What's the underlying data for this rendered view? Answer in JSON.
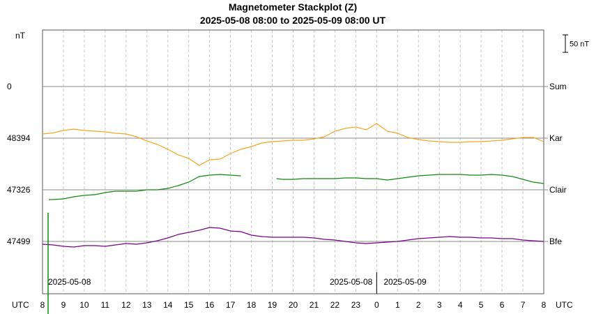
{
  "chart_data": {
    "type": "line",
    "title": "Magnetometer Stackplot (Z)",
    "subtitle": "2025-05-08 08:00 to 2025-05-09 08:00 UT",
    "y_unit_label": "nT",
    "x_unit_label_left": "UTC",
    "x_unit_label_right": "UTC",
    "x_hours": [
      8,
      9,
      10,
      11,
      12,
      13,
      14,
      15,
      16,
      17,
      18,
      19,
      20,
      21,
      22,
      23,
      0,
      1,
      2,
      3,
      4,
      5,
      6,
      7,
      8
    ],
    "date_labels": [
      {
        "text": "2025-05-08",
        "at_hour_offset": 0
      },
      {
        "text": "2025-05-08",
        "at_hour_offset": 16
      },
      {
        "text": "2025-05-09",
        "at_hour_offset": 16
      }
    ],
    "scale_bar": {
      "label": "50 nT",
      "value_nT": 50
    },
    "grid": true,
    "stations": [
      {
        "name": "Sum",
        "baseline_label": "0",
        "color": "#f5a623",
        "points": []
      },
      {
        "name": "Kar",
        "baseline_label": "48394",
        "color": "#f5a623",
        "points": [
          [
            0,
            12
          ],
          [
            0.5,
            15
          ],
          [
            1,
            22
          ],
          [
            1.5,
            26
          ],
          [
            2,
            22
          ],
          [
            2.5,
            20
          ],
          [
            3,
            18
          ],
          [
            3.5,
            14
          ],
          [
            4,
            12
          ],
          [
            4.5,
            4
          ],
          [
            5,
            -8
          ],
          [
            5.5,
            -18
          ],
          [
            6,
            -32
          ],
          [
            6.5,
            -48
          ],
          [
            7,
            -58
          ],
          [
            7.5,
            -78
          ],
          [
            8,
            -62
          ],
          [
            8.5,
            -60
          ],
          [
            9,
            -44
          ],
          [
            9.5,
            -32
          ],
          [
            10,
            -24
          ],
          [
            10.5,
            -14
          ],
          [
            11,
            -10
          ],
          [
            11.5,
            -8
          ],
          [
            12,
            -6
          ],
          [
            12.5,
            -6
          ],
          [
            13,
            -2
          ],
          [
            13.5,
            4
          ],
          [
            14,
            20
          ],
          [
            14.5,
            28
          ],
          [
            15,
            32
          ],
          [
            15.5,
            24
          ],
          [
            16,
            42
          ],
          [
            16.5,
            20
          ],
          [
            17,
            14
          ],
          [
            17.5,
            2
          ],
          [
            18,
            -4
          ],
          [
            18.5,
            -8
          ],
          [
            19,
            -10
          ],
          [
            19.5,
            -12
          ],
          [
            20,
            -12
          ],
          [
            20.5,
            -10
          ],
          [
            21,
            -10
          ],
          [
            21.5,
            -8
          ],
          [
            22,
            -6
          ],
          [
            22.5,
            -2
          ],
          [
            23,
            2
          ],
          [
            23.5,
            2
          ],
          [
            24,
            -10
          ]
        ]
      },
      {
        "name": "Clair",
        "baseline_label": "47326",
        "color": "#118811",
        "segments": [
          [
            [
              0.3,
              -28
            ],
            [
              0.5,
              -28
            ],
            [
              1,
              -26
            ],
            [
              1.5,
              -20
            ],
            [
              2,
              -16
            ],
            [
              2.5,
              -14
            ],
            [
              3,
              -8
            ],
            [
              3.5,
              -4
            ],
            [
              4,
              -4
            ],
            [
              4.5,
              -4
            ],
            [
              5,
              0
            ],
            [
              5.5,
              0
            ],
            [
              6,
              4
            ],
            [
              6.5,
              12
            ],
            [
              7,
              22
            ],
            [
              7.5,
              38
            ],
            [
              8,
              42
            ],
            [
              8.5,
              44
            ],
            [
              9,
              42
            ],
            [
              9.5,
              40
            ]
          ],
          [
            [
              11.2,
              32
            ],
            [
              11.5,
              30
            ],
            [
              12,
              30
            ],
            [
              12.5,
              32
            ],
            [
              13,
              32
            ],
            [
              13.5,
              32
            ],
            [
              14,
              32
            ],
            [
              14.5,
              34
            ],
            [
              15,
              34
            ],
            [
              15.5,
              32
            ],
            [
              16,
              32
            ],
            [
              16.5,
              28
            ],
            [
              17,
              32
            ],
            [
              17.5,
              36
            ],
            [
              18,
              40
            ],
            [
              18.5,
              42
            ],
            [
              19,
              44
            ],
            [
              19.5,
              44
            ],
            [
              20,
              44
            ],
            [
              20.5,
              42
            ],
            [
              21,
              42
            ],
            [
              21.5,
              44
            ],
            [
              22,
              42
            ],
            [
              22.5,
              38
            ],
            [
              23,
              30
            ],
            [
              23.5,
              22
            ],
            [
              24,
              18
            ]
          ]
        ]
      },
      {
        "name": "Bfe",
        "baseline_label": "47499",
        "color": "#770088",
        "points": [
          [
            0,
            -8
          ],
          [
            0.5,
            -10
          ],
          [
            1,
            -14
          ],
          [
            1.5,
            -16
          ],
          [
            2,
            -12
          ],
          [
            2.5,
            -12
          ],
          [
            3,
            -14
          ],
          [
            3.5,
            -10
          ],
          [
            4,
            -6
          ],
          [
            4.5,
            -8
          ],
          [
            5,
            -4
          ],
          [
            5.5,
            2
          ],
          [
            6,
            10
          ],
          [
            6.5,
            20
          ],
          [
            7,
            26
          ],
          [
            7.5,
            32
          ],
          [
            8,
            40
          ],
          [
            8.5,
            38
          ],
          [
            9,
            30
          ],
          [
            9.5,
            28
          ],
          [
            10,
            18
          ],
          [
            10.5,
            14
          ],
          [
            11,
            12
          ],
          [
            11.5,
            12
          ],
          [
            12,
            12
          ],
          [
            12.5,
            12
          ],
          [
            13,
            10
          ],
          [
            13.5,
            6
          ],
          [
            14,
            4
          ],
          [
            14.5,
            0
          ],
          [
            15,
            -4
          ],
          [
            15.5,
            -6
          ],
          [
            16,
            -4
          ],
          [
            16.5,
            -2
          ],
          [
            17,
            0
          ],
          [
            17.5,
            4
          ],
          [
            18,
            8
          ],
          [
            18.5,
            10
          ],
          [
            19,
            12
          ],
          [
            19.5,
            14
          ],
          [
            20,
            12
          ],
          [
            20.5,
            12
          ],
          [
            21,
            10
          ],
          [
            21.5,
            10
          ],
          [
            22,
            8
          ],
          [
            22.5,
            8
          ],
          [
            23,
            4
          ],
          [
            23.5,
            2
          ],
          [
            24,
            0
          ]
        ]
      }
    ]
  }
}
